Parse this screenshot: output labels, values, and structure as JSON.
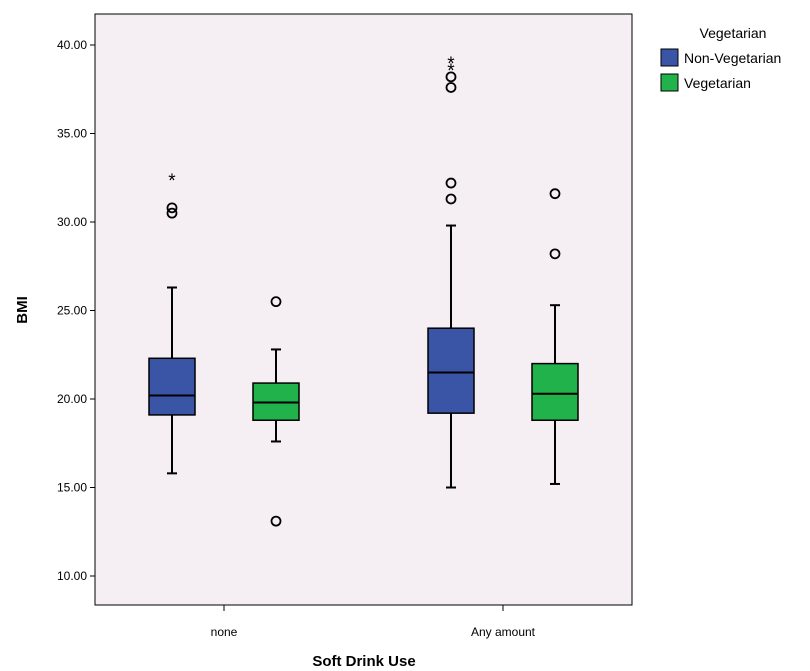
{
  "chart_data": {
    "type": "boxplot",
    "xlabel": "Soft Drink Use",
    "ylabel": "BMI",
    "ylim": [
      9,
      42.5
    ],
    "yticks": [
      10,
      15,
      20,
      25,
      30,
      35,
      40
    ],
    "ytick_labels": [
      "10.00",
      "15.00",
      "20.00",
      "25.00",
      "30.00",
      "35.00",
      "40.00"
    ],
    "categories": [
      "none",
      "Any amount"
    ],
    "legend": {
      "title": "Vegetarian",
      "placement": "right",
      "entries": [
        "Non-Vegetarian",
        "Vegetarian"
      ]
    },
    "plot_background": "#f5eef3",
    "series": [
      {
        "name": "Non-Vegetarian",
        "color": "#3a55a6",
        "boxes": [
          {
            "category": "none",
            "whisker_low": 15.8,
            "q1": 19.1,
            "median": 20.2,
            "q3": 22.3,
            "whisker_high": 26.3,
            "outliers": [
              30.5,
              30.8
            ],
            "extremes": [
              32.5
            ]
          },
          {
            "category": "Any amount",
            "whisker_low": 15.0,
            "q1": 19.2,
            "median": 21.5,
            "q3": 24.0,
            "whisker_high": 29.8,
            "outliers": [
              31.3,
              32.2,
              37.6,
              38.2
            ],
            "extremes": [
              38.7,
              39.1
            ]
          }
        ]
      },
      {
        "name": "Vegetarian",
        "color": "#21b24b",
        "boxes": [
          {
            "category": "none",
            "whisker_low": 17.6,
            "q1": 18.8,
            "median": 19.8,
            "q3": 20.9,
            "whisker_high": 22.8,
            "outliers": [
              25.5,
              13.1
            ],
            "extremes": []
          },
          {
            "category": "Any amount",
            "whisker_low": 15.2,
            "q1": 18.8,
            "median": 20.3,
            "q3": 22.0,
            "whisker_high": 25.3,
            "outliers": [
              28.2,
              31.6
            ],
            "extremes": []
          }
        ]
      }
    ]
  }
}
